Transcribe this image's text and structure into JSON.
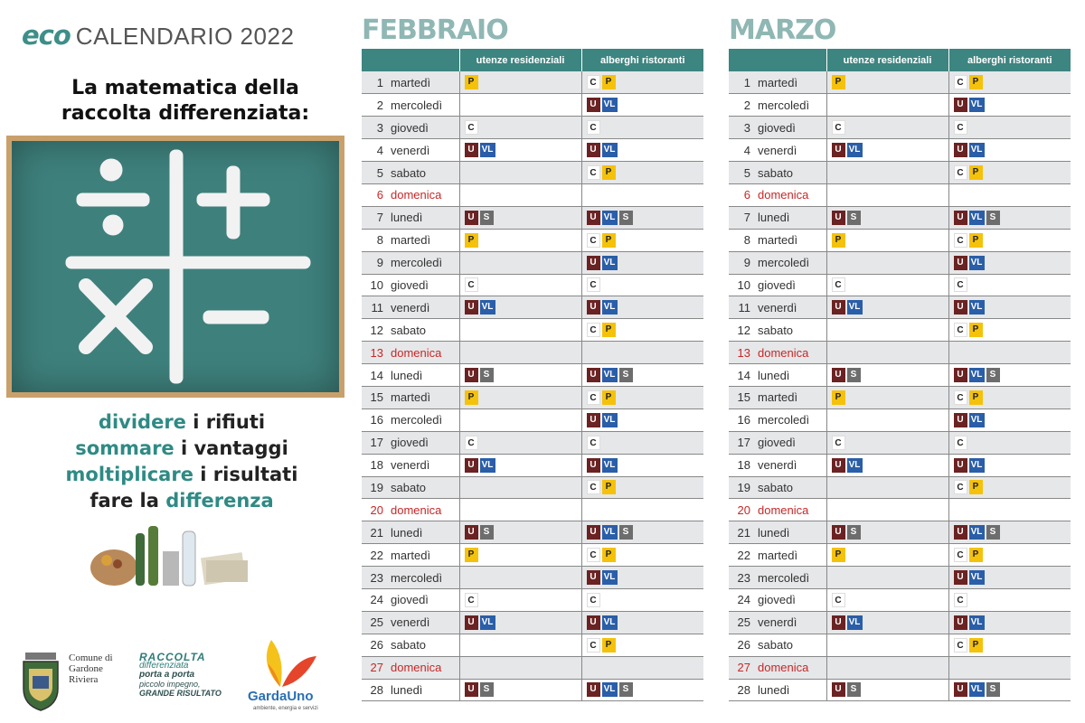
{
  "header": {
    "eco": "eco",
    "title": "CALENDARIO 2022"
  },
  "headline": [
    "La matematica della",
    "raccolta differenziata:"
  ],
  "slogan": [
    {
      "hl": "dividere",
      "rest": " i rifiuti"
    },
    {
      "hl": "sommare",
      "rest": " i vantaggi"
    },
    {
      "hl": "moltiplicare",
      "rest": " i risultati"
    },
    {
      "pre": "fare la ",
      "hl": "differenza"
    }
  ],
  "footer": {
    "comune": [
      "Comune di",
      "Gardone",
      "Riviera"
    ],
    "raccolta": [
      "RACCOLTA",
      "differenziata",
      "porta a porta",
      "piccolo impegno,",
      "GRANDE RISULTATO"
    ],
    "garda_name": "GardaUno",
    "garda_tag": "ambiente, energia e servizi"
  },
  "columns": {
    "res": "utenze residenziali",
    "alb": "alberghi ristoranti"
  },
  "colors": {
    "accent": "#3d8580",
    "title": "#8fb7b4",
    "P": "#f5c20b",
    "U": "#6b2222",
    "VL": "#2a5ea8",
    "S": "#6d6d6d",
    "sunday": "#c62828"
  },
  "months": [
    {
      "name": "FEBBRAIO",
      "rows": [
        {
          "n": "1",
          "d": "martedì",
          "res": [
            "P"
          ],
          "alb": [
            "C",
            "P"
          ]
        },
        {
          "n": "2",
          "d": "mercoledì",
          "res": [],
          "alb": [
            "U",
            "VL"
          ]
        },
        {
          "n": "3",
          "d": "giovedì",
          "res": [
            "C"
          ],
          "alb": [
            "C"
          ]
        },
        {
          "n": "4",
          "d": "venerdì",
          "res": [
            "U",
            "VL"
          ],
          "alb": [
            "U",
            "VL"
          ]
        },
        {
          "n": "5",
          "d": "sabato",
          "res": [],
          "alb": [
            "C",
            "P"
          ]
        },
        {
          "n": "6",
          "d": "domenica",
          "res": [],
          "alb": [],
          "sun": true
        },
        {
          "n": "7",
          "d": "lunedì",
          "res": [
            "U",
            "S"
          ],
          "alb": [
            "U",
            "VL",
            "S"
          ]
        },
        {
          "n": "8",
          "d": "martedì",
          "res": [
            "P"
          ],
          "alb": [
            "C",
            "P"
          ]
        },
        {
          "n": "9",
          "d": "mercoledì",
          "res": [],
          "alb": [
            "U",
            "VL"
          ]
        },
        {
          "n": "10",
          "d": "giovedì",
          "res": [
            "C"
          ],
          "alb": [
            "C"
          ]
        },
        {
          "n": "11",
          "d": "venerdì",
          "res": [
            "U",
            "VL"
          ],
          "alb": [
            "U",
            "VL"
          ]
        },
        {
          "n": "12",
          "d": "sabato",
          "res": [],
          "alb": [
            "C",
            "P"
          ]
        },
        {
          "n": "13",
          "d": "domenica",
          "res": [],
          "alb": [],
          "sun": true
        },
        {
          "n": "14",
          "d": "lunedì",
          "res": [
            "U",
            "S"
          ],
          "alb": [
            "U",
            "VL",
            "S"
          ]
        },
        {
          "n": "15",
          "d": "martedì",
          "res": [
            "P"
          ],
          "alb": [
            "C",
            "P"
          ]
        },
        {
          "n": "16",
          "d": "mercoledì",
          "res": [],
          "alb": [
            "U",
            "VL"
          ]
        },
        {
          "n": "17",
          "d": "giovedì",
          "res": [
            "C"
          ],
          "alb": [
            "C"
          ]
        },
        {
          "n": "18",
          "d": "venerdì",
          "res": [
            "U",
            "VL"
          ],
          "alb": [
            "U",
            "VL"
          ]
        },
        {
          "n": "19",
          "d": "sabato",
          "res": [],
          "alb": [
            "C",
            "P"
          ]
        },
        {
          "n": "20",
          "d": "domenica",
          "res": [],
          "alb": [],
          "sun": true
        },
        {
          "n": "21",
          "d": "lunedì",
          "res": [
            "U",
            "S"
          ],
          "alb": [
            "U",
            "VL",
            "S"
          ]
        },
        {
          "n": "22",
          "d": "martedì",
          "res": [
            "P"
          ],
          "alb": [
            "C",
            "P"
          ]
        },
        {
          "n": "23",
          "d": "mercoledì",
          "res": [],
          "alb": [
            "U",
            "VL"
          ]
        },
        {
          "n": "24",
          "d": "giovedì",
          "res": [
            "C"
          ],
          "alb": [
            "C"
          ]
        },
        {
          "n": "25",
          "d": "venerdì",
          "res": [
            "U",
            "VL"
          ],
          "alb": [
            "U",
            "VL"
          ]
        },
        {
          "n": "26",
          "d": "sabato",
          "res": [],
          "alb": [
            "C",
            "P"
          ]
        },
        {
          "n": "27",
          "d": "domenica",
          "res": [],
          "alb": [],
          "sun": true
        },
        {
          "n": "28",
          "d": "lunedì",
          "res": [
            "U",
            "S"
          ],
          "alb": [
            "U",
            "VL",
            "S"
          ]
        }
      ]
    },
    {
      "name": "MARZO",
      "rows": [
        {
          "n": "1",
          "d": "martedì",
          "res": [
            "P"
          ],
          "alb": [
            "C",
            "P"
          ]
        },
        {
          "n": "2",
          "d": "mercoledì",
          "res": [],
          "alb": [
            "U",
            "VL"
          ]
        },
        {
          "n": "3",
          "d": "giovedì",
          "res": [
            "C"
          ],
          "alb": [
            "C"
          ]
        },
        {
          "n": "4",
          "d": "venerdì",
          "res": [
            "U",
            "VL"
          ],
          "alb": [
            "U",
            "VL"
          ]
        },
        {
          "n": "5",
          "d": "sabato",
          "res": [],
          "alb": [
            "C",
            "P"
          ]
        },
        {
          "n": "6",
          "d": "domenica",
          "res": [],
          "alb": [],
          "sun": true
        },
        {
          "n": "7",
          "d": "lunedì",
          "res": [
            "U",
            "S"
          ],
          "alb": [
            "U",
            "VL",
            "S"
          ]
        },
        {
          "n": "8",
          "d": "martedì",
          "res": [
            "P"
          ],
          "alb": [
            "C",
            "P"
          ]
        },
        {
          "n": "9",
          "d": "mercoledì",
          "res": [],
          "alb": [
            "U",
            "VL"
          ]
        },
        {
          "n": "10",
          "d": "giovedì",
          "res": [
            "C"
          ],
          "alb": [
            "C"
          ]
        },
        {
          "n": "11",
          "d": "venerdì",
          "res": [
            "U",
            "VL"
          ],
          "alb": [
            "U",
            "VL"
          ]
        },
        {
          "n": "12",
          "d": "sabato",
          "res": [],
          "alb": [
            "C",
            "P"
          ]
        },
        {
          "n": "13",
          "d": "domenica",
          "res": [],
          "alb": [],
          "sun": true
        },
        {
          "n": "14",
          "d": "lunedì",
          "res": [
            "U",
            "S"
          ],
          "alb": [
            "U",
            "VL",
            "S"
          ]
        },
        {
          "n": "15",
          "d": "martedì",
          "res": [
            "P"
          ],
          "alb": [
            "C",
            "P"
          ]
        },
        {
          "n": "16",
          "d": "mercoledì",
          "res": [],
          "alb": [
            "U",
            "VL"
          ]
        },
        {
          "n": "17",
          "d": "giovedì",
          "res": [
            "C"
          ],
          "alb": [
            "C"
          ]
        },
        {
          "n": "18",
          "d": "venerdì",
          "res": [
            "U",
            "VL"
          ],
          "alb": [
            "U",
            "VL"
          ]
        },
        {
          "n": "19",
          "d": "sabato",
          "res": [],
          "alb": [
            "C",
            "P"
          ]
        },
        {
          "n": "20",
          "d": "domenica",
          "res": [],
          "alb": [],
          "sun": true
        },
        {
          "n": "21",
          "d": "lunedì",
          "res": [
            "U",
            "S"
          ],
          "alb": [
            "U",
            "VL",
            "S"
          ]
        },
        {
          "n": "22",
          "d": "martedì",
          "res": [
            "P"
          ],
          "alb": [
            "C",
            "P"
          ]
        },
        {
          "n": "23",
          "d": "mercoledì",
          "res": [],
          "alb": [
            "U",
            "VL"
          ]
        },
        {
          "n": "24",
          "d": "giovedì",
          "res": [
            "C"
          ],
          "alb": [
            "C"
          ]
        },
        {
          "n": "25",
          "d": "venerdì",
          "res": [
            "U",
            "VL"
          ],
          "alb": [
            "U",
            "VL"
          ]
        },
        {
          "n": "26",
          "d": "sabato",
          "res": [],
          "alb": [
            "C",
            "P"
          ]
        },
        {
          "n": "27",
          "d": "domenica",
          "res": [],
          "alb": [],
          "sun": true
        },
        {
          "n": "28",
          "d": "lunedì",
          "res": [
            "U",
            "S"
          ],
          "alb": [
            "U",
            "VL",
            "S"
          ]
        }
      ]
    }
  ]
}
